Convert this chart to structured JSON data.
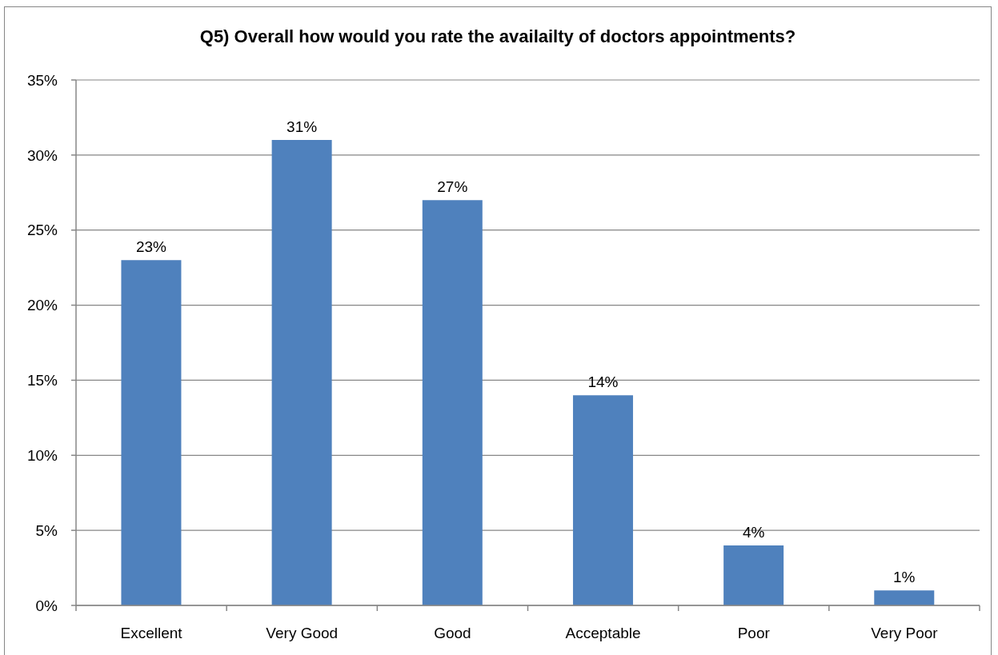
{
  "chart_data": {
    "type": "bar",
    "title": "Q5) Overall how would you rate the availailty of doctors appointments?",
    "categories": [
      "Excellent",
      "Very Good",
      "Good",
      "Acceptable",
      "Poor",
      "Very Poor"
    ],
    "values": [
      23,
      31,
      27,
      14,
      4,
      1
    ],
    "value_labels": [
      "23%",
      "31%",
      "27%",
      "14%",
      "4%",
      "1%"
    ],
    "color": "#4f81bd",
    "ylim": [
      0,
      35
    ],
    "yticks": [
      {
        "value": 0,
        "label": "0%"
      },
      {
        "value": 5,
        "label": "5%"
      },
      {
        "value": 10,
        "label": "10%"
      },
      {
        "value": 15,
        "label": "15%"
      },
      {
        "value": 20,
        "label": "20%"
      },
      {
        "value": 25,
        "label": "25%"
      },
      {
        "value": 30,
        "label": "30%"
      },
      {
        "value": 35,
        "label": "35%"
      }
    ],
    "grid": "y"
  }
}
